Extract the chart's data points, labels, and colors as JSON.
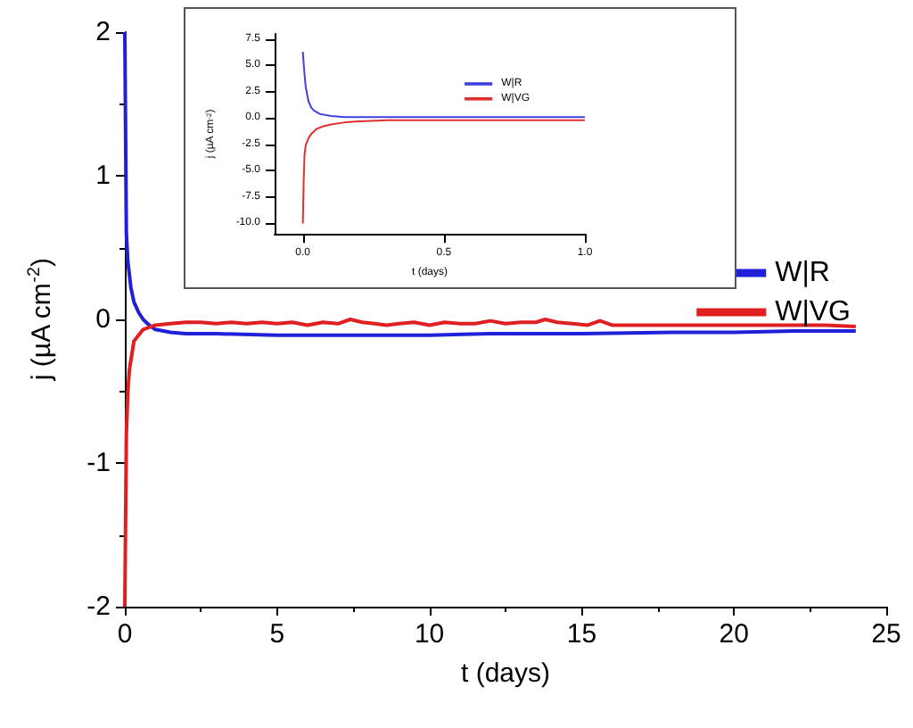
{
  "chart_data": [
    {
      "type": "line",
      "xlabel": "t (days)",
      "ylabel": "j (µA cm$^{-2}$)",
      "xlim": [
        0,
        25
      ],
      "xticks": [
        0,
        5,
        10,
        15,
        20,
        25
      ],
      "ylim": [
        -2,
        2
      ],
      "yticks": [
        -2,
        -1,
        0,
        1,
        2
      ],
      "legend": "right",
      "grid": false,
      "marker": "none",
      "series": [
        {
          "name": "W|R",
          "color": "#2020d8",
          "x": [
            0,
            0.05,
            0.1,
            0.2,
            0.3,
            0.45,
            0.6,
            0.8,
            1,
            1.5,
            2,
            3,
            5,
            8,
            10,
            12,
            15,
            18,
            20,
            22,
            24
          ],
          "values": [
            2,
            0.6,
            0.4,
            0.22,
            0.12,
            0.05,
            0.0,
            -0.04,
            -0.07,
            -0.09,
            -0.1,
            -0.1,
            -0.11,
            -0.11,
            -0.11,
            -0.1,
            -0.1,
            -0.09,
            -0.09,
            -0.08,
            -0.08
          ]
        },
        {
          "name": "W|VG",
          "color": "#e02020",
          "x": [
            0,
            0.05,
            0.1,
            0.15,
            0.3,
            0.6,
            1,
            1.5,
            2,
            2.5,
            3,
            3.5,
            4,
            4.5,
            5,
            5.5,
            6,
            6.5,
            7,
            7.4,
            7.8,
            8.2,
            8.6,
            9,
            9.5,
            10,
            10.5,
            11,
            11.5,
            12,
            12.5,
            13,
            13.5,
            13.8,
            14.2,
            14.7,
            15.2,
            15.6,
            16,
            16.5,
            17,
            18,
            19,
            20,
            21,
            22,
            23,
            24
          ],
          "values": [
            -2,
            -0.8,
            -0.5,
            -0.35,
            -0.15,
            -0.07,
            -0.04,
            -0.03,
            -0.02,
            -0.02,
            -0.03,
            -0.02,
            -0.03,
            -0.02,
            -0.03,
            -0.02,
            -0.04,
            -0.02,
            -0.03,
            0.0,
            -0.02,
            -0.03,
            -0.04,
            -0.03,
            -0.02,
            -0.04,
            -0.02,
            -0.03,
            -0.03,
            -0.01,
            -0.03,
            -0.02,
            -0.02,
            0.0,
            -0.02,
            -0.03,
            -0.04,
            -0.01,
            -0.04,
            -0.04,
            -0.04,
            -0.04,
            -0.04,
            -0.04,
            -0.04,
            -0.04,
            -0.04,
            -0.05
          ]
        }
      ]
    },
    {
      "type": "line",
      "xlabel": "t (days)",
      "ylabel": "j (µA cm$^{-2}$)",
      "xlim": [
        -0.1,
        1.0
      ],
      "xticks": [
        {
          "value": 0,
          "label": "0.0"
        },
        {
          "value": 0.5,
          "label": "0.5"
        },
        {
          "value": 1,
          "label": "1.0"
        }
      ],
      "ylim": [
        -11,
        8
      ],
      "yticks": [
        {
          "value": -10,
          "label": "-10.0"
        },
        -7.5,
        {
          "value": -5,
          "label": "-5.0"
        },
        -2.5,
        {
          "value": 0,
          "label": "0.0"
        },
        2.5,
        {
          "value": 5,
          "label": "5.0"
        },
        7.5
      ],
      "legend": "top right",
      "grid": false,
      "marker": "none",
      "series": [
        {
          "name": "W|R",
          "color": "#4040e0",
          "x": [
            0,
            0.005,
            0.01,
            0.02,
            0.03,
            0.04,
            0.06,
            0.08,
            0.1,
            0.15,
            0.2,
            0.3,
            0.4,
            0.6,
            0.8,
            1.0
          ],
          "values": [
            6.3,
            4.5,
            3.0,
            1.6,
            1.0,
            0.7,
            0.4,
            0.3,
            0.2,
            0.1,
            0.1,
            0.1,
            0.1,
            0.1,
            0.1,
            0.1
          ]
        },
        {
          "name": "W|VG",
          "color": "#e03030",
          "x": [
            0,
            0.003,
            0.006,
            0.01,
            0.02,
            0.03,
            0.05,
            0.07,
            0.1,
            0.15,
            0.2,
            0.3,
            0.4,
            0.6,
            0.8,
            1.0
          ],
          "values": [
            -10,
            -6,
            -3.5,
            -2.6,
            -1.9,
            -1.5,
            -1.0,
            -0.8,
            -0.6,
            -0.4,
            -0.3,
            -0.2,
            -0.2,
            -0.2,
            -0.2,
            -0.2
          ]
        }
      ]
    }
  ]
}
